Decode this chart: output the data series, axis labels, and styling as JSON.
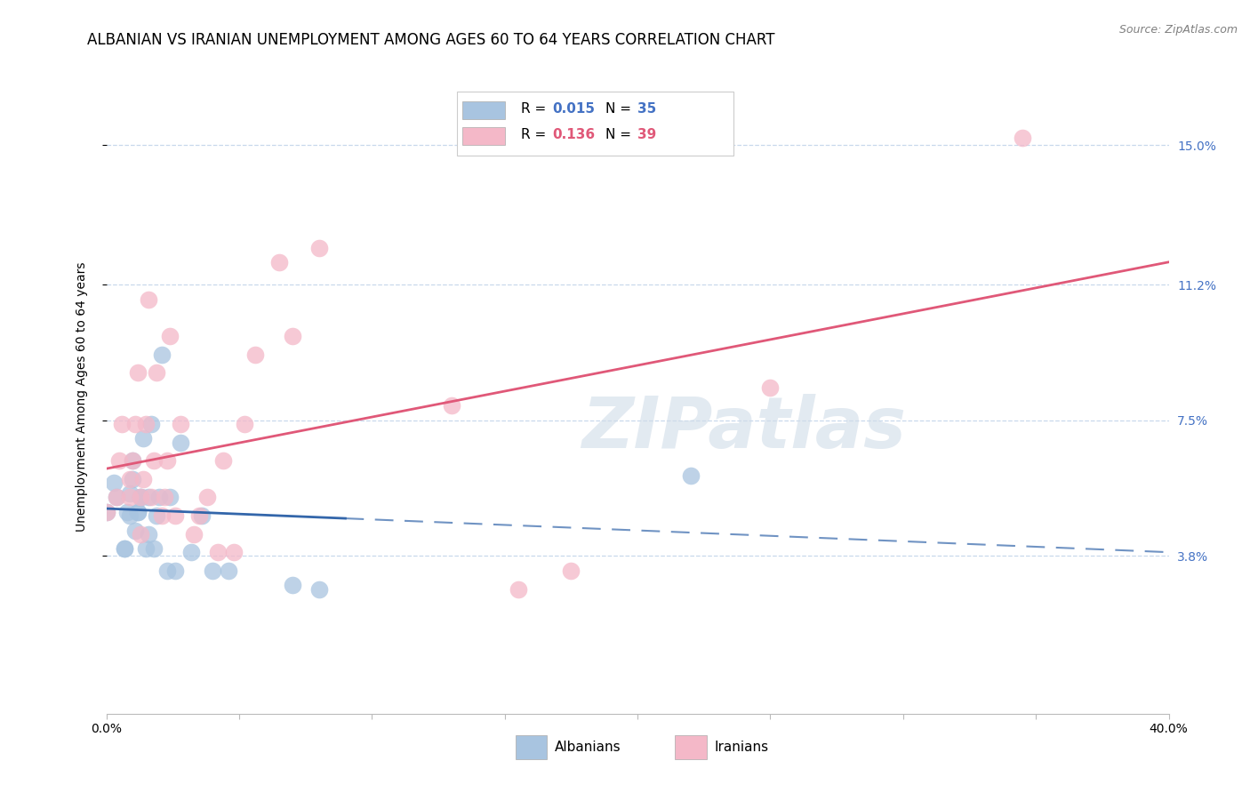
{
  "title": "ALBANIAN VS IRANIAN UNEMPLOYMENT AMONG AGES 60 TO 64 YEARS CORRELATION CHART",
  "source": "Source: ZipAtlas.com",
  "ylabel": "Unemployment Among Ages 60 to 64 years",
  "xlim": [
    0.0,
    0.4
  ],
  "ylim": [
    -0.005,
    0.168
  ],
  "ytick_positions": [
    0.038,
    0.075,
    0.112,
    0.15
  ],
  "ytick_labels": [
    "3.8%",
    "7.5%",
    "11.2%",
    "15.0%"
  ],
  "albanian_R": 0.015,
  "albanian_N": 35,
  "iranian_R": 0.136,
  "iranian_N": 39,
  "albanian_color": "#a8c4e0",
  "albanian_line_color": "#3366aa",
  "iranian_color": "#f4b8c8",
  "iranian_line_color": "#e05878",
  "albanian_x": [
    0.0,
    0.003,
    0.004,
    0.007,
    0.007,
    0.008,
    0.009,
    0.009,
    0.01,
    0.01,
    0.011,
    0.012,
    0.012,
    0.013,
    0.013,
    0.014,
    0.015,
    0.016,
    0.016,
    0.017,
    0.018,
    0.019,
    0.02,
    0.021,
    0.023,
    0.024,
    0.026,
    0.028,
    0.032,
    0.036,
    0.04,
    0.046,
    0.07,
    0.08,
    0.22
  ],
  "albanian_y": [
    0.05,
    0.058,
    0.054,
    0.04,
    0.04,
    0.05,
    0.049,
    0.055,
    0.059,
    0.064,
    0.045,
    0.05,
    0.05,
    0.054,
    0.054,
    0.07,
    0.04,
    0.044,
    0.054,
    0.074,
    0.04,
    0.049,
    0.054,
    0.093,
    0.034,
    0.054,
    0.034,
    0.069,
    0.039,
    0.049,
    0.034,
    0.034,
    0.03,
    0.029,
    0.06
  ],
  "iranian_x": [
    0.0,
    0.004,
    0.005,
    0.006,
    0.009,
    0.009,
    0.01,
    0.011,
    0.012,
    0.013,
    0.013,
    0.014,
    0.015,
    0.016,
    0.017,
    0.018,
    0.019,
    0.021,
    0.022,
    0.023,
    0.024,
    0.026,
    0.028,
    0.033,
    0.035,
    0.038,
    0.042,
    0.044,
    0.048,
    0.052,
    0.056,
    0.065,
    0.07,
    0.08,
    0.13,
    0.155,
    0.175,
    0.25,
    0.345
  ],
  "iranian_y": [
    0.05,
    0.054,
    0.064,
    0.074,
    0.054,
    0.059,
    0.064,
    0.074,
    0.088,
    0.044,
    0.054,
    0.059,
    0.074,
    0.108,
    0.054,
    0.064,
    0.088,
    0.049,
    0.054,
    0.064,
    0.098,
    0.049,
    0.074,
    0.044,
    0.049,
    0.054,
    0.039,
    0.064,
    0.039,
    0.074,
    0.093,
    0.118,
    0.098,
    0.122,
    0.079,
    0.029,
    0.034,
    0.084,
    0.152
  ],
  "watermark": "ZIPatlas",
  "background_color": "#ffffff",
  "grid_color": "#c8d8ec",
  "title_fontsize": 12,
  "axis_fontsize": 10,
  "tick_fontsize": 10,
  "legend_fontsize": 11
}
